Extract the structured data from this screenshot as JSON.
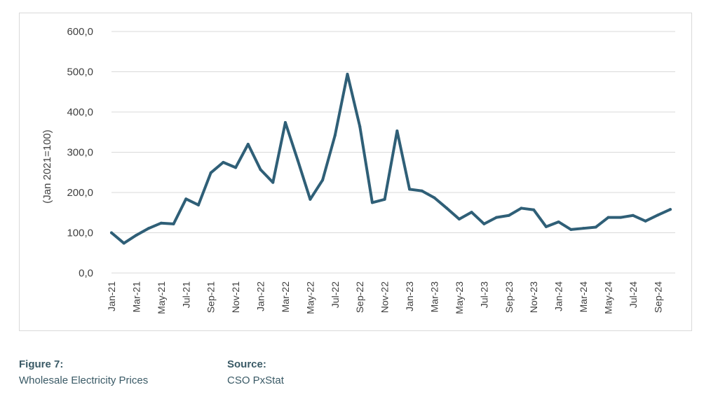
{
  "caption": {
    "figure_label": "Figure 7:",
    "figure_text": "Wholesale Electricity Prices",
    "source_label": "Source:",
    "source_text": "CSO PxStat"
  },
  "colors": {
    "line": "#2f5f77",
    "grid": "#d9d9d9",
    "axis_text": "#404040"
  },
  "chart_data": {
    "type": "line",
    "ylabel": "(Jan 2021=100)",
    "ylim": [
      0,
      600
    ],
    "yticks": [
      "0,0",
      "100,0",
      "200,0",
      "300,0",
      "400,0",
      "500,0",
      "600,0"
    ],
    "grid": true,
    "x_tick_labels": [
      "Jan-21",
      "Mar-21",
      "May-21",
      "Jul-21",
      "Sep-21",
      "Nov-21",
      "Jan-22",
      "Mar-22",
      "May-22",
      "Jul-22",
      "Sep-22",
      "Nov-22",
      "Jan-23",
      "Mar-23",
      "May-23",
      "Jul-23",
      "Sep-23",
      "Nov-23",
      "Jan-24",
      "Mar-24",
      "May-24",
      "Jul-24",
      "Sep-24"
    ],
    "x": [
      "Jan-21",
      "Feb-21",
      "Mar-21",
      "Apr-21",
      "May-21",
      "Jun-21",
      "Jul-21",
      "Aug-21",
      "Sep-21",
      "Oct-21",
      "Nov-21",
      "Dec-21",
      "Jan-22",
      "Feb-22",
      "Mar-22",
      "Apr-22",
      "May-22",
      "Jun-22",
      "Jul-22",
      "Aug-22",
      "Sep-22",
      "Oct-22",
      "Nov-22",
      "Dec-22",
      "Jan-23",
      "Feb-23",
      "Mar-23",
      "Apr-23",
      "May-23",
      "Jun-23",
      "Jul-23",
      "Aug-23",
      "Sep-23",
      "Oct-23",
      "Nov-23",
      "Dec-23",
      "Jan-24",
      "Feb-24",
      "Mar-24",
      "Apr-24",
      "May-24",
      "Jun-24",
      "Jul-24",
      "Aug-24",
      "Sep-24",
      "Oct-24"
    ],
    "series": [
      {
        "values": [
          100,
          74,
          94,
          111,
          124,
          122,
          184,
          169,
          249,
          275,
          262,
          320,
          257,
          225,
          374,
          280,
          183,
          231,
          342,
          494,
          364,
          175,
          183,
          353,
          208,
          204,
          187,
          161,
          134,
          151,
          122,
          138,
          143,
          161,
          157,
          115,
          127,
          108,
          111,
          114,
          138,
          138,
          143,
          129,
          144,
          158
        ]
      }
    ]
  }
}
